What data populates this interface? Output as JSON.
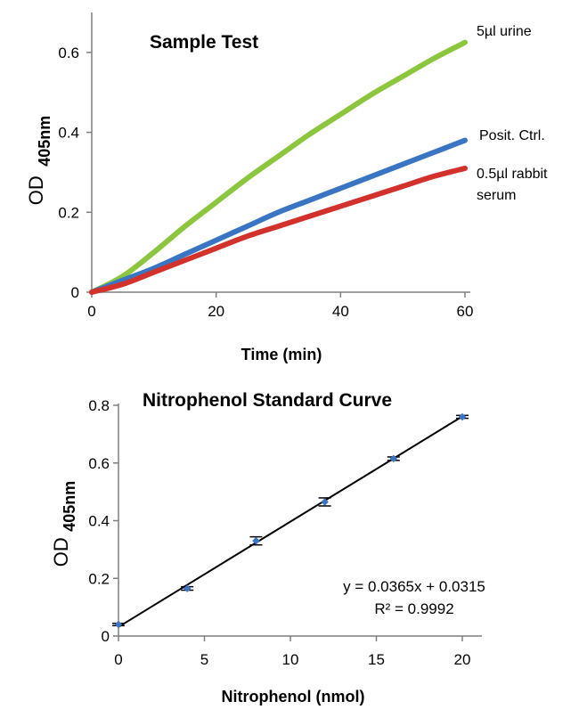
{
  "chart_data": [
    {
      "type": "line",
      "title": "Sample Test",
      "xlabel": "Time (min)",
      "ylabel_main": "OD",
      "ylabel_sub": "405nm",
      "xlim": [
        0,
        60
      ],
      "ylim": [
        0,
        0.7
      ],
      "xticks": [
        0,
        20,
        40,
        60
      ],
      "yticks": [
        0,
        0.2,
        0.4,
        0.6
      ],
      "ytick_labels": [
        "0",
        "0.2",
        "0.4",
        "0.6"
      ],
      "grid": false,
      "legend": "inline-right",
      "series": [
        {
          "label_lines": [
            "5µl urine"
          ],
          "color": "#8cc63f",
          "x": [
            0,
            5,
            10,
            15,
            20,
            25,
            30,
            35,
            40,
            45,
            50,
            55,
            60
          ],
          "y": [
            0,
            0.04,
            0.1,
            0.165,
            0.225,
            0.285,
            0.34,
            0.395,
            0.445,
            0.495,
            0.54,
            0.585,
            0.625
          ]
        },
        {
          "label_lines": [
            "Posit. Ctrl."
          ],
          "color": "#3a75c4",
          "x": [
            0,
            5,
            10,
            15,
            20,
            25,
            30,
            35,
            40,
            45,
            50,
            55,
            60
          ],
          "y": [
            0,
            0.03,
            0.06,
            0.095,
            0.13,
            0.165,
            0.2,
            0.23,
            0.26,
            0.29,
            0.32,
            0.35,
            0.38
          ]
        },
        {
          "label_lines": [
            "0.5µl rabbit",
            "serum"
          ],
          "color": "#d2312c",
          "x": [
            0,
            5,
            10,
            15,
            20,
            25,
            30,
            35,
            40,
            45,
            50,
            55,
            60
          ],
          "y": [
            0,
            0.02,
            0.05,
            0.08,
            0.11,
            0.14,
            0.165,
            0.19,
            0.215,
            0.24,
            0.265,
            0.29,
            0.31
          ]
        }
      ]
    },
    {
      "type": "scatter",
      "title": "Nitrophenol Standard Curve",
      "xlabel": "Nitrophenol (nmol)",
      "ylabel_main": "OD",
      "ylabel_sub": "405nm",
      "xlim": [
        0,
        20
      ],
      "ylim": [
        0,
        0.8
      ],
      "xticks": [
        0,
        5,
        10,
        15,
        20
      ],
      "yticks": [
        0,
        0.2,
        0.4,
        0.6,
        0.8
      ],
      "ytick_labels": [
        "0",
        "0.2",
        "0.4",
        "0.6",
        "0.8"
      ],
      "grid": false,
      "point_color": "#3a75c4",
      "points": [
        {
          "x": 0,
          "y": 0.04,
          "err": 0.004
        },
        {
          "x": 4,
          "y": 0.165,
          "err": 0.006
        },
        {
          "x": 8,
          "y": 0.33,
          "err": 0.014
        },
        {
          "x": 12,
          "y": 0.465,
          "err": 0.014
        },
        {
          "x": 16,
          "y": 0.615,
          "err": 0.006
        },
        {
          "x": 20,
          "y": 0.76,
          "err": 0.005
        }
      ],
      "trendline": {
        "slope": 0.0365,
        "intercept": 0.0315,
        "color": "#000000"
      },
      "equation": "y = 0.0365x + 0.0315",
      "r2": "R² = 0.9992"
    }
  ]
}
